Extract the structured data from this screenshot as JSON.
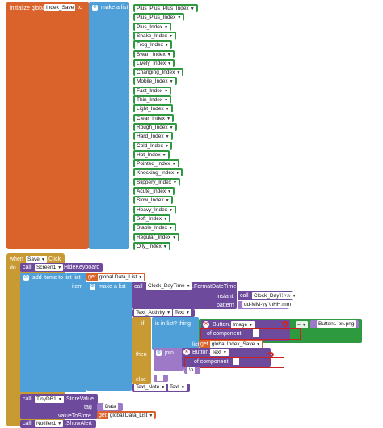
{
  "init_block": {
    "prefix": "initialize global",
    "var_name": "Index_Save",
    "to": "to",
    "make_list": "make a list",
    "items": [
      "Plus_Plus_Plus_Index",
      "Plus_Plus_Index",
      "Plus_Index",
      "Snake_Index",
      "Frog_Index",
      "Swan_Index",
      "Lively_Index",
      "Changing_Index",
      "Mobile_Index",
      "Fast_Index",
      "Thin_Index",
      "Light_Index",
      "Clear_Index",
      "Rough_Index",
      "Hard_Index",
      "Cold_Index",
      "Hot_Index",
      "Pointed_Index",
      "Knocking_Index",
      "Slippery_Index",
      "Acute_Index",
      "Slow_Index",
      "Heavy_Index",
      "Soft_Index",
      "Stable_Index",
      "Regular_Index",
      "Oily_Index"
    ]
  },
  "event_block": {
    "when": "when",
    "component": "Save",
    "event": ".Click",
    "do": "do",
    "call1": "call",
    "screen": "Screen1",
    "hide_keyboard": ".HideKeyboard",
    "add_items": "add items to list",
    "list_label": "list",
    "get": "get",
    "global_data_list": "global Data_List",
    "item_label": "item",
    "make_list": "make a list",
    "call_clock": "call",
    "clock": "Clock_DayTime",
    "format_datetime": ".FormatDateTime",
    "instant": "instant",
    "clock2": "Clock_DayTime",
    "now": ".Now",
    "pattern": "pattern",
    "pattern_value": "dd-MM-yy \\nHH:mm",
    "text_activity": "Text_Activity",
    "text_prop": "Text",
    "if": "if",
    "is_in_list": "is in list? thing",
    "button_label": "Button.",
    "image_prop": "Image",
    "eq": "=",
    "eq_value": "Button1-on.png",
    "of_component": "of component",
    "list2": "list",
    "global_index_save": "global Index_Save",
    "then": "then",
    "join": "join",
    "button2_label": "Button.",
    "text_prop2": "Text",
    "of_component2": "of component",
    "newline": "\\n",
    "else": "else",
    "text_note": "Text_Note",
    "text_prop3": "Text",
    "call_tiny": "call",
    "tinydb": "TinyDB1",
    "store_value": ".StoreValue",
    "tag": "tag",
    "tag_value": "Data",
    "value_to_store": "valueToStore",
    "global_data_list2": "global Data_List",
    "call_notifier": "call",
    "notifier": "Notifier1",
    "show_alert": ".ShowAlert",
    "qmark1": "?",
    "qmark2": "?"
  },
  "colors": {
    "variables": "#d9632b",
    "lists": "#4fa0d8",
    "control": "#c89a33",
    "component": "#6e4a9c",
    "text": "#9d79c7",
    "highlight_red": "#cc1f1f"
  }
}
